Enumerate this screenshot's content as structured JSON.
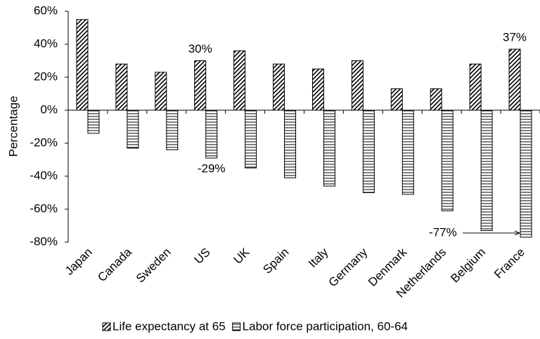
{
  "chart_data": {
    "type": "bar",
    "y_label": "Percentage",
    "categories": [
      "Japan",
      "Canada",
      "Sweden",
      "US",
      "UK",
      "Spain",
      "Italy",
      "Germany",
      "Denmark",
      "Netherlands",
      "Belgium",
      "France"
    ],
    "series": [
      {
        "name": "Life expectancy at 65",
        "color": "#000000",
        "hatch": "diagonal",
        "values": [
          55,
          28,
          23,
          30,
          36,
          28,
          25,
          30,
          13,
          13,
          28,
          37
        ],
        "value_labels": [
          null,
          null,
          null,
          "30%",
          null,
          null,
          null,
          null,
          null,
          null,
          null,
          "37%"
        ]
      },
      {
        "name": "Labor force participation, 60-64",
        "color": "#000000",
        "hatch": "horizontal",
        "values": [
          -14,
          -23,
          -24,
          -29,
          -35,
          -41,
          -46,
          -50,
          -51,
          -61,
          -73,
          -77
        ],
        "value_labels": [
          null,
          null,
          null,
          "-29%",
          null,
          null,
          null,
          null,
          null,
          null,
          null,
          "-77%"
        ]
      }
    ],
    "ylim": [
      -80,
      60
    ],
    "yticks": [
      {
        "value": -80,
        "label": "-80%"
      },
      {
        "value": -60,
        "label": "-60%"
      },
      {
        "value": -40,
        "label": "-40%"
      },
      {
        "value": -20,
        "label": "-20%"
      },
      {
        "value": 0,
        "label": "0%"
      },
      {
        "value": 20,
        "label": "20%"
      },
      {
        "value": 40,
        "label": "40%"
      },
      {
        "value": 60,
        "label": "60%"
      }
    ],
    "legend": "bottom"
  }
}
